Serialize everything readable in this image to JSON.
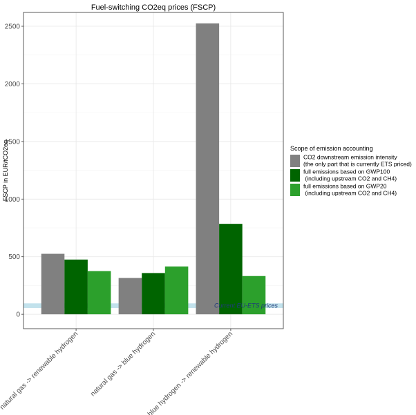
{
  "chart_data": {
    "type": "bar",
    "title": "Fuel-switching CO2eq prices (FSCP)",
    "ylabel": "FSCP in EUR/tCO2eq",
    "xlabel": "",
    "ylim": [
      -125,
      2620
    ],
    "yticks": [
      0,
      500,
      1000,
      1500,
      2000,
      2500
    ],
    "grid": true,
    "legend_placement": "right",
    "legend_title": "Scope of emission accounting",
    "categories": [
      "natural gas -> renewable hydrogen",
      "natural gas -> blue hydrogen",
      "blue hydrogen -> renewable hydrogen"
    ],
    "series": [
      {
        "name": "CO2 downstream emission intensity\n(the only part that is currently ETS priced)",
        "color": "#808080",
        "values": [
          525,
          315,
          2525
        ]
      },
      {
        "name": "full emissions based on GWP100\n (including upstream CO2 and CH4)",
        "color": "#006400",
        "values": [
          475,
          358,
          785
        ]
      },
      {
        "name": "full emissions based on GWP20\n (including upstream CO2 and CH4)",
        "color": "#2ca02c",
        "values": [
          375,
          415,
          332
        ]
      }
    ],
    "annotation": {
      "text": "Current EU-ETS  prices",
      "band_range": [
        55,
        95
      ],
      "band_color": "#add8e6"
    }
  }
}
